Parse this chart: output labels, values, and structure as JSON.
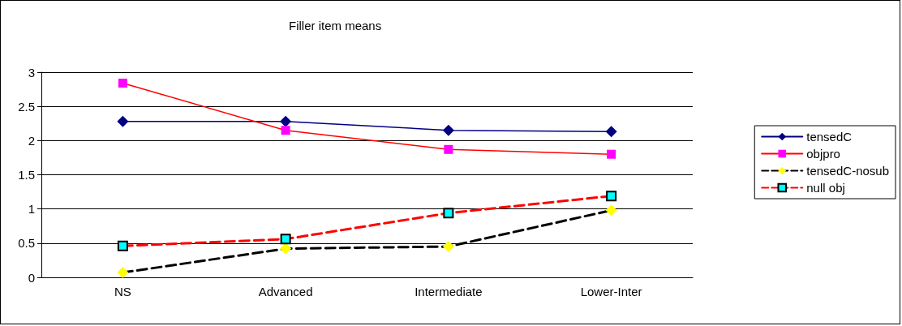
{
  "chart_data": {
    "type": "line",
    "title": "Filler item means",
    "categories": [
      "NS",
      "Advanced",
      "Intermediate",
      "Lower-Inter"
    ],
    "series": [
      {
        "name": "tensedC",
        "color": "#000080",
        "colors": [
          "#000080",
          "#000080",
          "#000080",
          "#000080"
        ],
        "marker": "diamond",
        "line_style": "solid",
        "values": [
          2.28,
          2.28,
          2.15,
          2.13
        ]
      },
      {
        "name": "objpro",
        "color": "#ff0000",
        "colors": [
          "#ff00ff",
          "#ff00ff",
          "#ff00ff",
          "#ff00ff"
        ],
        "marker": "square",
        "line_style": "solid",
        "values": [
          2.84,
          2.15,
          1.87,
          1.8
        ]
      },
      {
        "name": "tensedC-nosub",
        "color": "#000000",
        "colors": [
          "#ffff00",
          "#ffff00",
          "#ffff00",
          "#ffff00"
        ],
        "marker": "diamond",
        "line_style": "dashed",
        "values": [
          0.07,
          0.42,
          0.45,
          0.98
        ]
      },
      {
        "name": "null obj",
        "color": "#ff0000",
        "colors": [
          "#00ffff",
          "#00ffff",
          "#00ffff",
          "#00ffff"
        ],
        "marker": "square",
        "line_style": "dashed",
        "values": [
          0.46,
          0.56,
          0.94,
          1.19
        ]
      }
    ],
    "ylim": [
      0,
      3
    ],
    "yticks": [
      0,
      0.5,
      1,
      1.5,
      2,
      2.5,
      3
    ],
    "grid": "y",
    "legend": "right"
  }
}
